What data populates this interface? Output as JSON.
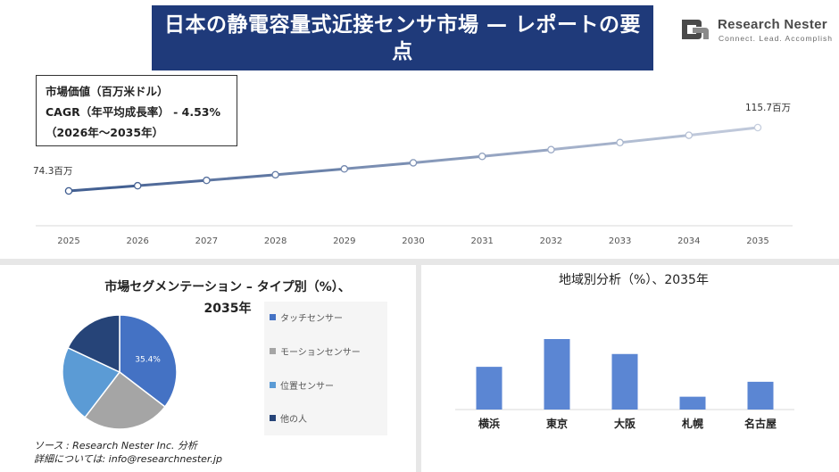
{
  "header": {
    "title": "日本の静電容量式近接センサ市場 — レポートの要点"
  },
  "logo": {
    "name": "Research Nester",
    "tagline": "Connect. Lead. Accomplish"
  },
  "info_box": {
    "line1": "市場価値（百万米ドル）",
    "line2": "CAGR（年平均成長率）  - 4.53%",
    "line3": "（2026年～2035年）"
  },
  "segment": {
    "title_line1": "市場セグメンテーション – タイプ別（%）、",
    "title_line2": "2035年"
  },
  "region": {
    "title": "地域別分析（%）、2035年"
  },
  "footer": {
    "source_line1": "ソース : Research Nester Inc. 分析",
    "source_line2": "詳細については: info@researchnester.jp"
  },
  "colors": {
    "banner": "#1f3a7a",
    "line_start": "#3c5a8e",
    "line_end": "#c6cede",
    "pie": [
      "#4472c4",
      "#a5a5a5",
      "#5b9bd5",
      "#264478"
    ],
    "bar": "#5b86d3"
  },
  "chart_data": [
    {
      "type": "line",
      "title": "",
      "x": [
        "2025",
        "2026",
        "2027",
        "2028",
        "2029",
        "2030",
        "2031",
        "2032",
        "2033",
        "2034",
        "2035"
      ],
      "series": [
        {
          "name": "",
          "values": [
            74.3,
            77.7,
            81.2,
            84.9,
            88.7,
            92.7,
            96.9,
            101.3,
            105.9,
            110.7,
            115.7
          ]
        }
      ],
      "value_labels": {
        "first": "74.3百万",
        "last": "115.7百万"
      },
      "ylim": [
        0,
        140
      ],
      "grid": false
    },
    {
      "type": "pie",
      "title": "市場セグメンテーション – タイプ別（%）、2035年",
      "labels": [
        "タッチセンサー",
        "モーションセンサー",
        "位置センサー",
        "他の人"
      ],
      "values": [
        35.4,
        25.0,
        21.6,
        18.0
      ],
      "data_labels": [
        "35.4%",
        "",
        "",
        ""
      ],
      "legend": "right"
    },
    {
      "type": "bar",
      "title": "地域別分析（%）、2035年",
      "categories": [
        "横浜",
        "東京",
        "大阪",
        "札幌",
        "名古屋"
      ],
      "values": [
        20,
        33,
        26,
        6,
        13
      ],
      "grid": false
    }
  ]
}
